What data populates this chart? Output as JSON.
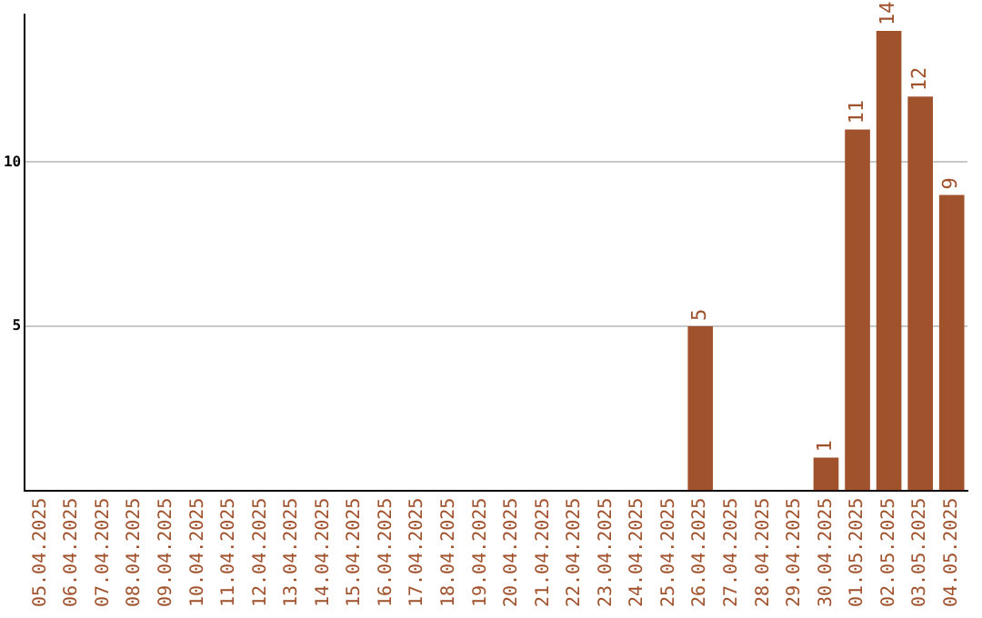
{
  "chart_data": {
    "type": "bar",
    "categories": [
      "05.04.2025",
      "06.04.2025",
      "07.04.2025",
      "08.04.2025",
      "09.04.2025",
      "10.04.2025",
      "11.04.2025",
      "12.04.2025",
      "13.04.2025",
      "14.04.2025",
      "15.04.2025",
      "16.04.2025",
      "17.04.2025",
      "18.04.2025",
      "19.04.2025",
      "20.04.2025",
      "21.04.2025",
      "22.04.2025",
      "23.04.2025",
      "24.04.2025",
      "25.04.2025",
      "26.04.2025",
      "27.04.2025",
      "28.04.2025",
      "29.04.2025",
      "30.04.2025",
      "01.05.2025",
      "02.05.2025",
      "03.05.2025",
      "04.05.2025"
    ],
    "values": [
      0,
      0,
      0,
      0,
      0,
      0,
      0,
      0,
      0,
      0,
      0,
      0,
      0,
      0,
      0,
      0,
      0,
      0,
      0,
      0,
      0,
      5,
      0,
      0,
      0,
      1,
      11,
      14,
      12,
      9
    ],
    "value_labels": [
      null,
      null,
      null,
      null,
      null,
      null,
      null,
      null,
      null,
      null,
      null,
      null,
      null,
      null,
      null,
      null,
      null,
      null,
      null,
      null,
      null,
      "5",
      null,
      null,
      null,
      "1",
      "11",
      "14",
      "12",
      "9"
    ],
    "color": "#a0522d",
    "ylim": [
      0,
      14.5
    ],
    "yticks": [
      5,
      10
    ],
    "grid": "y",
    "legend": false
  }
}
